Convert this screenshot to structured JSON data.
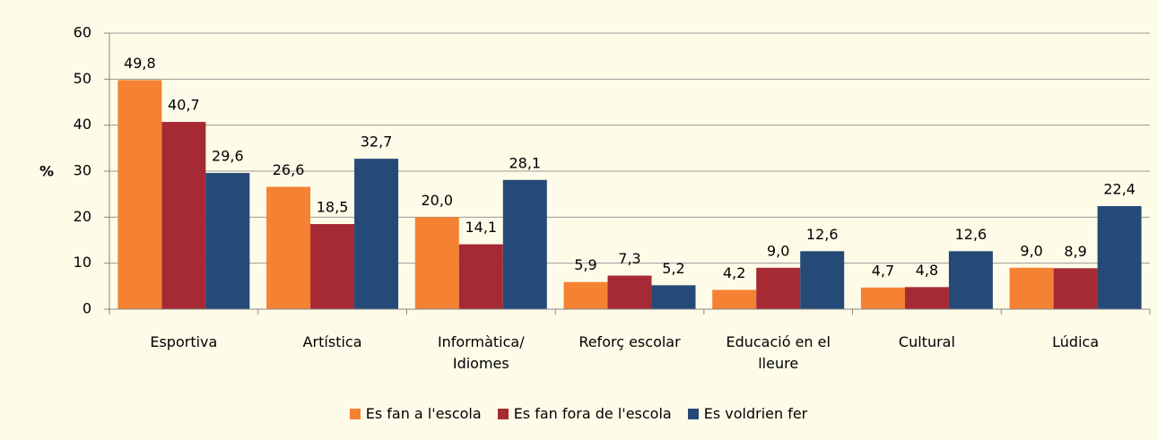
{
  "chart_data": {
    "type": "bar",
    "y_label": "%",
    "categories": [
      "Esportiva",
      "Artística",
      "Informàtica/ Idiomes",
      "Reforç escolar",
      "Educació en el lleure",
      "Cultural",
      "Lúdica"
    ],
    "series": [
      {
        "name": "Es fan a l'escola",
        "color": "#f58232",
        "values": [
          49.8,
          26.6,
          20.0,
          5.9,
          4.2,
          4.7,
          9.0
        ],
        "value_labels": [
          "49,8",
          "26,6",
          "20,0",
          "5,9",
          "4,2",
          "4,7",
          "9,0"
        ]
      },
      {
        "name": "Es fan fora de l'escola",
        "color": "#a52a34",
        "values": [
          40.7,
          18.5,
          14.1,
          7.3,
          9.0,
          4.8,
          8.9
        ],
        "value_labels": [
          "40,7",
          "18,5",
          "14,1",
          "7,3",
          "9,0",
          "4,8",
          "8,9"
        ]
      },
      {
        "name": "Es voldrien fer",
        "color": "#254a78",
        "values": [
          29.6,
          32.7,
          28.1,
          5.2,
          12.6,
          12.6,
          22.4
        ],
        "value_labels": [
          "29,6",
          "32,7",
          "28,1",
          "5,2",
          "12,6",
          "12,6",
          "22,4"
        ]
      }
    ],
    "ylim": [
      0,
      60
    ],
    "yticks": [
      0,
      10,
      20,
      30,
      40,
      50,
      60
    ],
    "grid": true,
    "legend": "bottom"
  }
}
